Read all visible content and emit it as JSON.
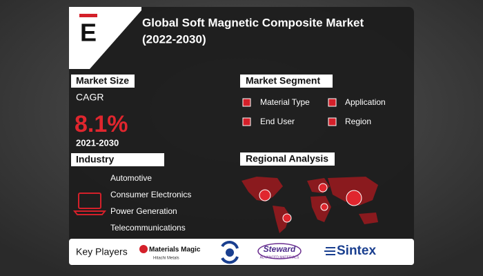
{
  "header": {
    "logo": "E",
    "title_lines": [
      "Global Soft Magnetic Composite Market",
      "(2022-2030)"
    ]
  },
  "market_size": {
    "heading": "Market Size",
    "metric": "CAGR",
    "value": "8.1%",
    "period": "2021-2030"
  },
  "market_segment": {
    "heading": "Market Segment",
    "items": [
      "Material Type",
      "Application",
      "End User",
      "Region"
    ]
  },
  "industry": {
    "heading": "Industry",
    "items": [
      "Automotive",
      "Consumer Electronics",
      "Power Generation",
      "Telecommunications"
    ]
  },
  "regional_analysis": {
    "heading": "Regional Analysis"
  },
  "key_players": {
    "heading": "Key Players",
    "players": [
      {
        "name": "Materials Magic",
        "sub": "Hitachi Metals"
      },
      {
        "name": "Steward",
        "sub": "ADVANCED MATERIALS"
      },
      {
        "name": "Sintex"
      }
    ]
  }
}
